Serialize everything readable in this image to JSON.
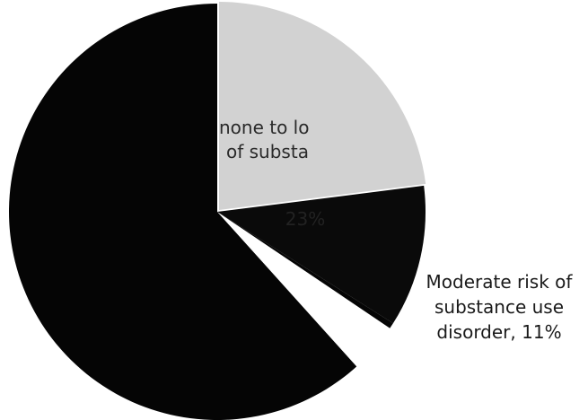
{
  "chart_data": {
    "type": "pie",
    "slices": [
      {
        "label": "",
        "value": 66,
        "color": "#050505"
      },
      {
        "label": "none to low risk of substance use disorder",
        "value": 23,
        "color": "#d2d2d2"
      },
      {
        "label": "Moderate risk of substance use disorder",
        "value": 11,
        "color": "#0a0a0a"
      }
    ],
    "data_labels": {
      "moderate": "Moderate risk of\nsubstance use\ndisorder, 11%",
      "low_fragment_line1": "none to lo",
      "low_fragment_line2": "of substa",
      "low_percent": "23%"
    }
  }
}
